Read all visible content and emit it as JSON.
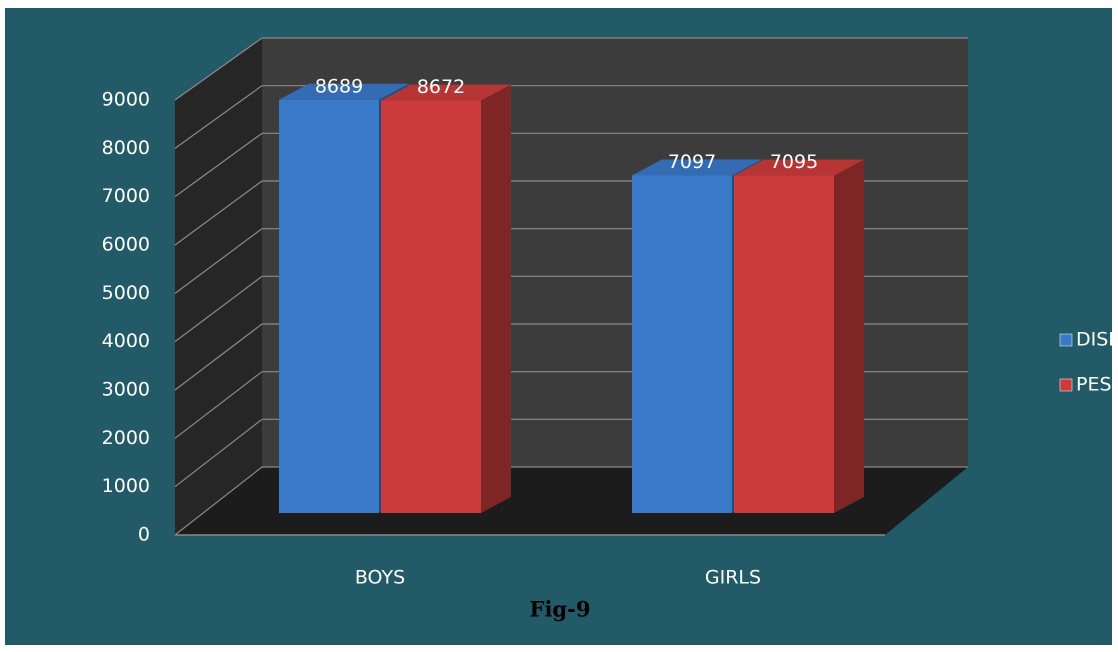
{
  "chart_data": {
    "type": "bar3d",
    "caption": "Fig-9",
    "categories": [
      "BOYS",
      "GIRLS"
    ],
    "series": [
      {
        "name": "DISE",
        "color": "#3a78c8",
        "values": [
          8689,
          7097
        ]
      },
      {
        "name": "PES",
        "color": "#cc3b3b",
        "values": [
          8672,
          7095
        ]
      }
    ],
    "ylim": [
      0,
      9000
    ],
    "yticks": [
      0,
      1000,
      2000,
      3000,
      4000,
      5000,
      6000,
      7000,
      8000,
      9000
    ],
    "grid": true,
    "legend": "right"
  }
}
